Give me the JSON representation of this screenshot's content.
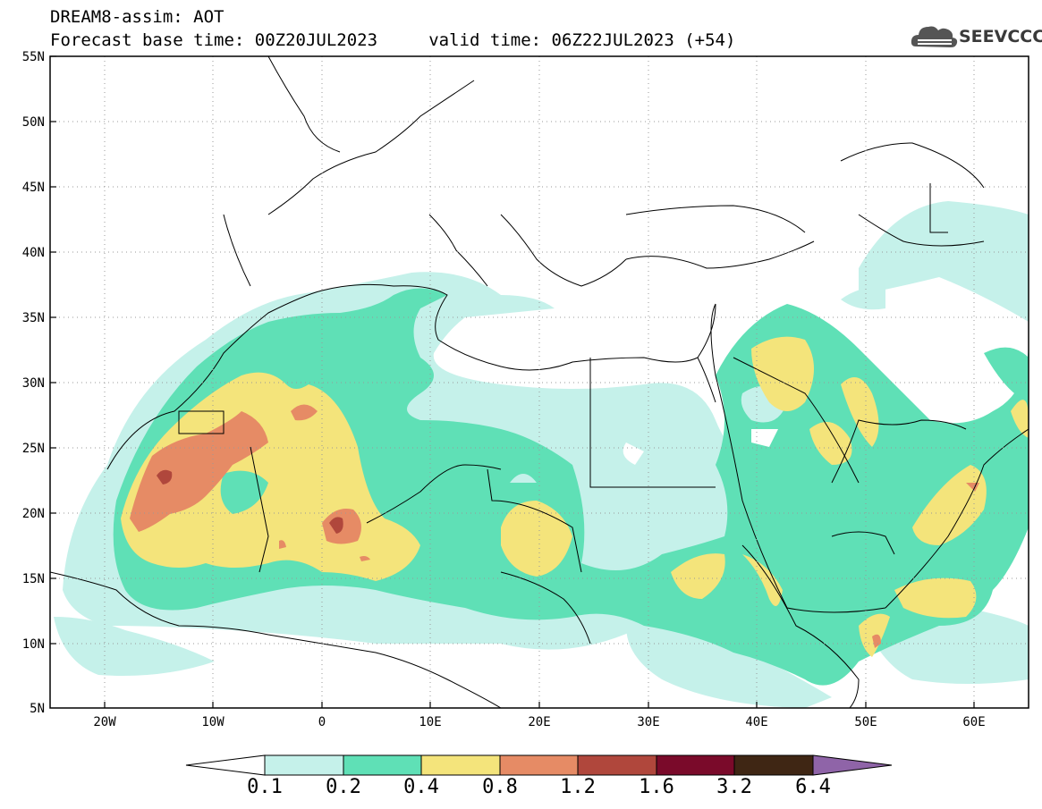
{
  "header": {
    "line1": "DREAM8-assim: AOT",
    "line2": "Forecast base time: 00Z20JUL2023     valid time: 06Z22JUL2023 (+54)"
  },
  "logo": {
    "text": "SEEVCCC",
    "icon": "cloud-icon"
  },
  "map": {
    "region": {
      "lon_range": [
        -25,
        65
      ],
      "lat_range": [
        5,
        55
      ]
    },
    "lat_labels": [
      "55N",
      "50N",
      "45N",
      "40N",
      "35N",
      "30N",
      "25N",
      "20N",
      "15N",
      "10N",
      "5N"
    ],
    "lon_labels": [
      "20W",
      "10W",
      "0",
      "10E",
      "20E",
      "30E",
      "40E",
      "50E",
      "60E"
    ],
    "gridlines": "dotted"
  },
  "colorbar": {
    "levels": [
      "0.1",
      "0.2",
      "0.4",
      "0.8",
      "1.2",
      "1.6",
      "3.2",
      "6.4"
    ],
    "colors": [
      "#ffffff",
      "#c5f1ea",
      "#5fe0b6",
      "#f4e47b",
      "#e68b65",
      "#b0473c",
      "#7a0a2a",
      "#3f2614",
      "#8f64a8"
    ]
  }
}
